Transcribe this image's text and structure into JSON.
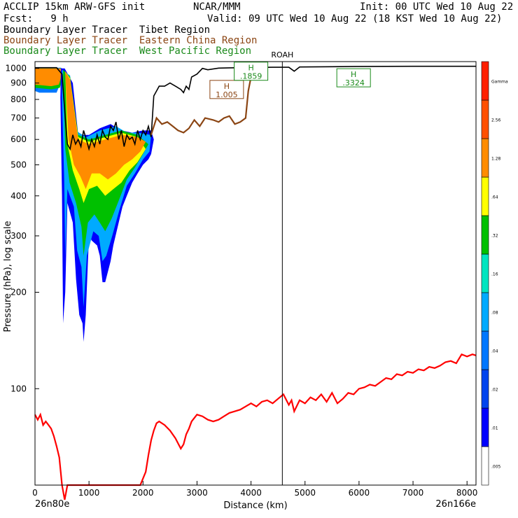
{
  "header": {
    "model": "ACCLIP 15km ARW-GFS init",
    "org": "NCAR/MMM",
    "init": "Init: 00 UTC Wed 10 Aug 22",
    "fcst": "Fcst:   9 h",
    "valid": "Valid: 09 UTC Wed 10 Aug 22 (18 KST Wed 10 Aug 22)",
    "tracers": [
      {
        "label": "Boundary Layer Tracer  Tibet Region",
        "color": "#000000"
      },
      {
        "label": "Boundary Layer Tracer  Eastern China Region",
        "color": "#8b4513"
      },
      {
        "label": "Boundary Layer Tracer  West Pacific Region",
        "color": "#1a8a1a"
      }
    ]
  },
  "chart_data": {
    "type": "area",
    "xlabel": "Distance (km)",
    "ylabel": "Pressure (hPa), log scale",
    "xlim": [
      0,
      8166
    ],
    "ylim": [
      1050,
      50
    ],
    "y_scale": "log",
    "x_ticks": [
      0,
      1000,
      2000,
      3000,
      4000,
      5000,
      6000,
      7000,
      8000
    ],
    "x_tick_labels": [
      "0",
      "1000",
      "2000",
      "3000",
      "4000",
      "5000",
      "6000",
      "7000",
      "8000"
    ],
    "y_ticks": [
      100,
      200,
      300,
      400,
      500,
      600,
      700,
      800,
      900,
      1000
    ],
    "y_tick_labels": [
      "100",
      "200",
      "300",
      "400",
      "500",
      "600",
      "700",
      "800",
      "900",
      "1000"
    ],
    "start_label": "26n80e",
    "end_label": "26n166e",
    "marker": {
      "label": "ROAH",
      "x": 4580
    },
    "colorbar": {
      "levels": [
        ".005",
        ".01",
        ".02",
        ".04",
        ".08",
        ".16",
        ".32",
        ".64",
        "1.28",
        "2.56",
        "Gamma"
      ],
      "colors": [
        "#ffffff",
        "#0000ff",
        "#0044ee",
        "#0077ff",
        "#00aaff",
        "#00e5c0",
        "#00c000",
        "#ffff00",
        "#ff8c00",
        "#ff5000",
        "#ff2000"
      ]
    },
    "series": [
      {
        "role": "tropopause",
        "color": "#ff0000",
        "points": [
          [
            0,
            83
          ],
          [
            50,
            80
          ],
          [
            100,
            83
          ],
          [
            150,
            77
          ],
          [
            200,
            79
          ],
          [
            250,
            77
          ],
          [
            300,
            75
          ],
          [
            350,
            71
          ],
          [
            400,
            66
          ],
          [
            450,
            61
          ],
          [
            500,
            50
          ],
          [
            550,
            45
          ],
          [
            600,
            50
          ],
          [
            1950,
            50
          ],
          [
            2050,
            55
          ],
          [
            2100,
            62
          ],
          [
            2150,
            69
          ],
          [
            2200,
            74
          ],
          [
            2250,
            78
          ],
          [
            2300,
            79
          ],
          [
            2400,
            77
          ],
          [
            2500,
            74
          ],
          [
            2600,
            70
          ],
          [
            2700,
            65
          ],
          [
            2750,
            67
          ],
          [
            2800,
            72
          ],
          [
            2850,
            75
          ],
          [
            2900,
            79
          ],
          [
            3000,
            83
          ],
          [
            3100,
            82
          ],
          [
            3200,
            80
          ],
          [
            3300,
            79
          ],
          [
            3400,
            80
          ],
          [
            3500,
            82
          ],
          [
            3600,
            84
          ],
          [
            3700,
            85
          ],
          [
            3800,
            86
          ],
          [
            3900,
            88
          ],
          [
            4000,
            90
          ],
          [
            4100,
            88
          ],
          [
            4200,
            91
          ],
          [
            4300,
            92
          ],
          [
            4400,
            90
          ],
          [
            4500,
            93
          ],
          [
            4600,
            96
          ],
          [
            4700,
            89
          ],
          [
            4750,
            92
          ],
          [
            4800,
            85
          ],
          [
            4900,
            92
          ],
          [
            5000,
            90
          ],
          [
            5100,
            94
          ],
          [
            5200,
            92
          ],
          [
            5300,
            96
          ],
          [
            5400,
            91
          ],
          [
            5500,
            97
          ],
          [
            5600,
            90
          ],
          [
            5700,
            93
          ],
          [
            5800,
            97
          ],
          [
            5900,
            96
          ],
          [
            6000,
            100
          ],
          [
            6100,
            101
          ],
          [
            6200,
            103
          ],
          [
            6300,
            102
          ],
          [
            6400,
            105
          ],
          [
            6500,
            108
          ],
          [
            6600,
            107
          ],
          [
            6700,
            111
          ],
          [
            6800,
            110
          ],
          [
            6900,
            113
          ],
          [
            7000,
            112
          ],
          [
            7100,
            115
          ],
          [
            7200,
            114
          ],
          [
            7300,
            117
          ],
          [
            7400,
            116
          ],
          [
            7500,
            118
          ],
          [
            7600,
            121
          ],
          [
            7700,
            122
          ],
          [
            7800,
            120
          ],
          [
            7900,
            128
          ],
          [
            8000,
            126
          ],
          [
            8100,
            128
          ],
          [
            8166,
            127
          ]
        ]
      },
      {
        "role": "terrain",
        "color": "#000000",
        "points": [
          [
            0,
            1005
          ],
          [
            400,
            1005
          ],
          [
            500,
            960
          ],
          [
            560,
            700
          ],
          [
            600,
            580
          ],
          [
            650,
            560
          ],
          [
            700,
            620
          ],
          [
            750,
            580
          ],
          [
            800,
            600
          ],
          [
            850,
            570
          ],
          [
            900,
            640
          ],
          [
            950,
            600
          ],
          [
            1000,
            560
          ],
          [
            1050,
            600
          ],
          [
            1100,
            570
          ],
          [
            1150,
            620
          ],
          [
            1200,
            580
          ],
          [
            1250,
            640
          ],
          [
            1300,
            610
          ],
          [
            1350,
            600
          ],
          [
            1400,
            660
          ],
          [
            1450,
            640
          ],
          [
            1500,
            680
          ],
          [
            1550,
            600
          ],
          [
            1600,
            640
          ],
          [
            1650,
            570
          ],
          [
            1700,
            620
          ],
          [
            1750,
            600
          ],
          [
            1800,
            610
          ],
          [
            1850,
            580
          ],
          [
            1900,
            640
          ],
          [
            1950,
            600
          ],
          [
            2000,
            640
          ],
          [
            2050,
            620
          ],
          [
            2100,
            660
          ],
          [
            2150,
            610
          ],
          [
            2200,
            820
          ],
          [
            2300,
            880
          ],
          [
            2400,
            880
          ],
          [
            2500,
            900
          ],
          [
            2600,
            880
          ],
          [
            2700,
            860
          ],
          [
            2750,
            840
          ],
          [
            2800,
            880
          ],
          [
            2850,
            860
          ],
          [
            2900,
            940
          ],
          [
            3000,
            960
          ],
          [
            3100,
            1000
          ],
          [
            3200,
            990
          ],
          [
            3400,
            1002
          ],
          [
            3600,
            1004
          ],
          [
            3800,
            1005
          ],
          [
            4000,
            1006
          ],
          [
            4400,
            1008
          ],
          [
            4700,
            1008
          ],
          [
            4800,
            980
          ],
          [
            4900,
            1010
          ],
          [
            5500,
            1012
          ],
          [
            6000,
            1014
          ],
          [
            7000,
            1015
          ],
          [
            8166,
            1015
          ]
        ]
      },
      {
        "role": "eastern-china-tracer",
        "color": "#8b4513",
        "points": [
          [
            2150,
            620
          ],
          [
            2250,
            700
          ],
          [
            2350,
            670
          ],
          [
            2450,
            680
          ],
          [
            2550,
            660
          ],
          [
            2650,
            640
          ],
          [
            2750,
            630
          ],
          [
            2850,
            650
          ],
          [
            2950,
            690
          ],
          [
            3050,
            660
          ],
          [
            3150,
            700
          ],
          [
            3300,
            690
          ],
          [
            3400,
            680
          ],
          [
            3500,
            700
          ],
          [
            3600,
            710
          ],
          [
            3700,
            670
          ],
          [
            3800,
            680
          ],
          [
            3900,
            700
          ],
          [
            3950,
            850
          ],
          [
            4000,
            940
          ]
        ]
      }
    ],
    "labels": [
      {
        "text": "H",
        "value": "1.005",
        "color": "#8b4513",
        "x": 3550,
        "p": 855
      },
      {
        "text": "H",
        "value": ".1859",
        "color": "#1a8a1a",
        "x": 4000,
        "p": 975
      },
      {
        "text": "H",
        "value": ".3324",
        "color": "#1a8a1a",
        "x": 5900,
        "p": 930
      }
    ]
  }
}
